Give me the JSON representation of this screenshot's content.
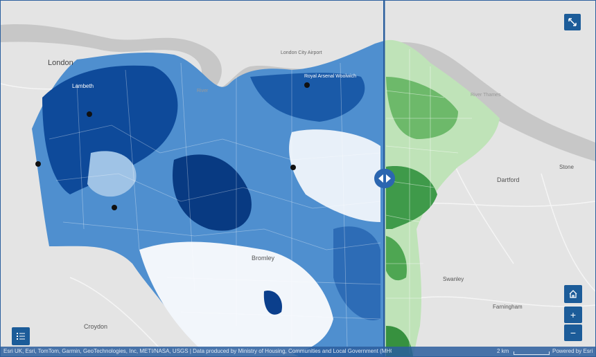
{
  "places": {
    "london": "London",
    "lambeth": "Lambeth",
    "london_city_airport": "London City Airport",
    "royal_arsenal": "Royal Arsenal Woolwich",
    "river_thames_west": "River",
    "river_thames_east": "River Thames",
    "bromley": "Bromley",
    "croydon": "Croydon",
    "dartford": "Dartford",
    "stone": "Stone",
    "swanley": "Swanley",
    "farningham": "Farningham"
  },
  "attribution": {
    "text": "Esri UK, Esri, TomTom, Garmin, GeoTechnologies, Inc, METI/NASA, USGS | Data produced by Ministry of Housing, Communities and Local Government (MHCLG)",
    "scale": "2 km",
    "powered_by": "Powered by Esri"
  },
  "swipe": {
    "left_layer_color": "#0b4a9c",
    "right_layer_color": "#3f9a4a"
  },
  "controls": {
    "expand_icon": "expand-icon",
    "home_icon": "home-icon",
    "zoom_in_label": "+",
    "zoom_out_label": "−",
    "legend_icon": "legend-list-icon"
  }
}
